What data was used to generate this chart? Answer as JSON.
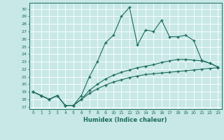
{
  "xlabel": "Humidex (Indice chaleur)",
  "ylabel": "",
  "xlim": [
    -0.5,
    23.5
  ],
  "ylim": [
    16.7,
    30.8
  ],
  "yticks": [
    17,
    18,
    19,
    20,
    21,
    22,
    23,
    24,
    25,
    26,
    27,
    28,
    29,
    30
  ],
  "xticks": [
    0,
    1,
    2,
    3,
    4,
    5,
    6,
    7,
    8,
    9,
    10,
    11,
    12,
    13,
    14,
    15,
    16,
    17,
    18,
    19,
    20,
    21,
    22,
    23
  ],
  "bg_color": "#c8e8e8",
  "line_color": "#1a6b5a",
  "line1_x": [
    0,
    1,
    2,
    3,
    4,
    5,
    6,
    7,
    8,
    9,
    10,
    11,
    12,
    13,
    14,
    15,
    16,
    17,
    18,
    19,
    20,
    21,
    22,
    23
  ],
  "line1_y": [
    19.0,
    18.5,
    18.0,
    18.5,
    17.2,
    17.2,
    18.5,
    21.0,
    23.0,
    25.5,
    26.5,
    29.0,
    30.2,
    25.2,
    27.2,
    27.0,
    28.5,
    26.3,
    26.3,
    26.5,
    25.8,
    23.2,
    22.8,
    22.3
  ],
  "line2_x": [
    0,
    1,
    2,
    3,
    4,
    5,
    6,
    7,
    8,
    9,
    10,
    11,
    12,
    13,
    14,
    15,
    16,
    17,
    18,
    19,
    20,
    21,
    22,
    23
  ],
  "line2_y": [
    19.0,
    18.5,
    18.0,
    18.5,
    17.2,
    17.2,
    18.0,
    19.2,
    20.0,
    20.7,
    21.2,
    21.6,
    21.9,
    22.2,
    22.4,
    22.6,
    22.9,
    23.1,
    23.3,
    23.3,
    23.2,
    23.1,
    22.8,
    22.3
  ],
  "line3_x": [
    0,
    1,
    2,
    3,
    4,
    5,
    6,
    7,
    8,
    9,
    10,
    11,
    12,
    13,
    14,
    15,
    16,
    17,
    18,
    19,
    20,
    21,
    22,
    23
  ],
  "line3_y": [
    19.0,
    18.5,
    18.0,
    18.5,
    17.2,
    17.2,
    18.0,
    18.8,
    19.4,
    19.9,
    20.3,
    20.6,
    20.9,
    21.1,
    21.3,
    21.4,
    21.5,
    21.6,
    21.7,
    21.8,
    21.9,
    22.0,
    22.1,
    22.2
  ]
}
